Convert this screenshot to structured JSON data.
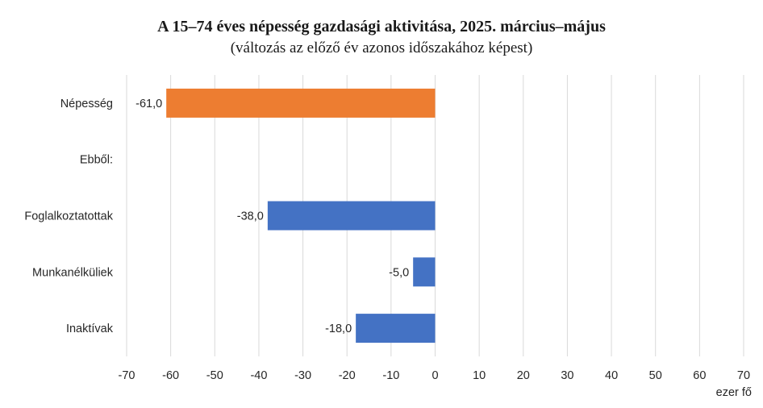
{
  "chart_data": {
    "type": "bar",
    "orientation": "horizontal",
    "title": "A 15–74 éves népesség gazdasági aktivitása, 2025. március–május",
    "subtitle": "(változás az előző év azonos időszakához képest)",
    "categories": [
      "Népesség",
      "Ebből:",
      "Foglalkoztatottak",
      "Munkanélküliek",
      "Inaktívak"
    ],
    "values": [
      -61.0,
      null,
      -38.0,
      -5.0,
      -18.0
    ],
    "data_labels": [
      "-61,0",
      "",
      "-38,0",
      "-5,0",
      "-18,0"
    ],
    "colors": [
      "#ED7D31",
      null,
      "#4472C4",
      "#4472C4",
      "#4472C4"
    ],
    "xlim": [
      -70,
      70
    ],
    "xticks": [
      -70,
      -60,
      -50,
      -40,
      -30,
      -20,
      -10,
      0,
      10,
      20,
      30,
      40,
      50,
      60,
      70
    ],
    "xticklabels": [
      "-70",
      "-60",
      "-50",
      "-40",
      "-30",
      "-20",
      "-10",
      "0",
      "10",
      "20",
      "30",
      "40",
      "50",
      "60",
      "70"
    ],
    "unit_label": "ezer fő",
    "grid": true,
    "gridline_color": "#D9D9D9"
  }
}
